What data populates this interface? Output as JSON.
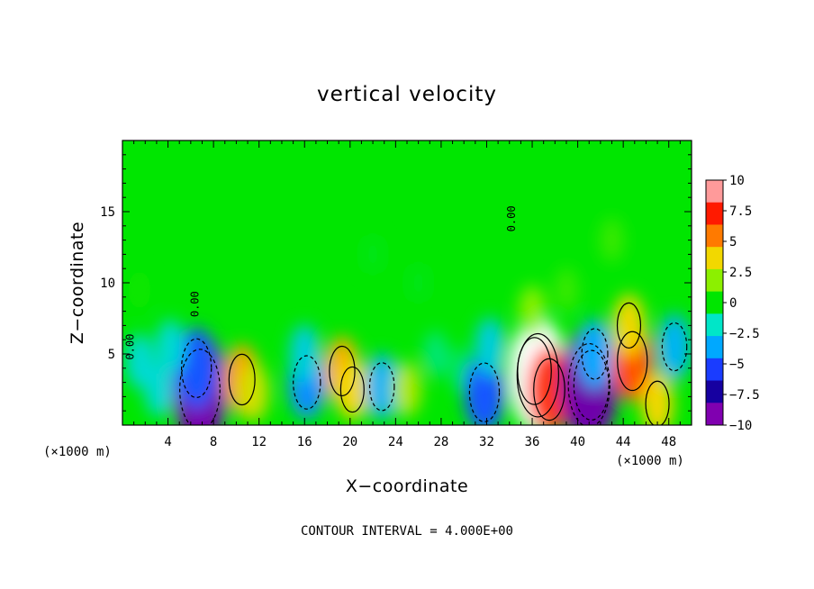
{
  "chart_data": {
    "type": "heatmap",
    "title": "vertical velocity",
    "xlabel": "X−coordinate",
    "ylabel": "Z−coordinate",
    "x_units_left": "(×1000 m)",
    "x_units_right": "(×1000 m)",
    "footer": "CONTOUR INTERVAL = 4.000E+00",
    "xlim": [
      0,
      50
    ],
    "ylim": [
      0,
      20
    ],
    "x_ticks": [
      4,
      8,
      12,
      16,
      20,
      24,
      28,
      32,
      36,
      40,
      44,
      48
    ],
    "x_tick_labels": [
      "4",
      "8",
      "12",
      "16",
      "20",
      "24",
      "28",
      "32",
      "36",
      "40",
      "44",
      "48"
    ],
    "y_ticks": [
      5,
      10,
      15
    ],
    "y_tick_labels": [
      "5",
      "10",
      "15"
    ],
    "contour_labels": [
      {
        "text": "0.00",
        "x": 34.5,
        "z": 14.5
      },
      {
        "text": "0.00",
        "x": 6.7,
        "z": 8.5
      },
      {
        "text": "0.00",
        "x": 1.0,
        "z": 5.5
      }
    ],
    "colorbar": {
      "range": [
        -10,
        10
      ],
      "tick_values": [
        10,
        7.5,
        5,
        2.5,
        0,
        -2.5,
        -5,
        -7.5,
        -10
      ],
      "tick_labels": [
        "10",
        "7.5",
        "5",
        "2.5",
        "0",
        "−2.5",
        "−5",
        "−7.5",
        "−10"
      ],
      "colors": [
        "#ff9a9a",
        "#ff1a00",
        "#ff7a00",
        "#f2d800",
        "#8cf000",
        "#00e600",
        "#00e6c8",
        "#00a8ff",
        "#1a3cff",
        "#1600a0",
        "#8000b0"
      ]
    },
    "cells": [
      {
        "x": 6.8,
        "z": 2.5,
        "w": -10.5
      },
      {
        "x": 6.5,
        "z": 4.0,
        "w": -6.5
      },
      {
        "x": 3.2,
        "z": 2.5,
        "w": -3.0
      },
      {
        "x": 4.2,
        "z": 5.5,
        "w": -3.0
      },
      {
        "x": 1.5,
        "z": 4.5,
        "w": -3.0
      },
      {
        "x": 10.5,
        "z": 3.2,
        "w": 5.0
      },
      {
        "x": 11.5,
        "z": 2.3,
        "w": 3.5
      },
      {
        "x": 16.2,
        "z": 3.0,
        "w": -5.5
      },
      {
        "x": 16.0,
        "z": 5.0,
        "w": -3.5
      },
      {
        "x": 19.3,
        "z": 3.8,
        "w": 4.8
      },
      {
        "x": 20.2,
        "z": 2.5,
        "w": 4.0
      },
      {
        "x": 22.8,
        "z": 2.7,
        "w": -4.5
      },
      {
        "x": 25.0,
        "z": 2.5,
        "w": 3.0
      },
      {
        "x": 27.5,
        "z": 5.0,
        "w": -1.8
      },
      {
        "x": 29.5,
        "z": 4.0,
        "w": -1.5
      },
      {
        "x": 31.8,
        "z": 2.3,
        "w": -6.5
      },
      {
        "x": 32.3,
        "z": 5.5,
        "w": -3.5
      },
      {
        "x": 36.2,
        "z": 3.8,
        "w": 8.0
      },
      {
        "x": 36.5,
        "z": 3.5,
        "w": 11.0
      },
      {
        "x": 37.5,
        "z": 2.5,
        "w": 7.0
      },
      {
        "x": 36.0,
        "z": 8.0,
        "w": 2.5
      },
      {
        "x": 41.2,
        "z": 2.8,
        "w": -8.5
      },
      {
        "x": 41.0,
        "z": 2.8,
        "w": -11.0
      },
      {
        "x": 41.5,
        "z": 5.0,
        "w": -5.0
      },
      {
        "x": 39.0,
        "z": 9.5,
        "w": 1.5
      },
      {
        "x": 44.8,
        "z": 4.5,
        "w": 6.5
      },
      {
        "x": 44.5,
        "z": 7.0,
        "w": 4.0
      },
      {
        "x": 47.0,
        "z": 1.5,
        "w": 4.0
      },
      {
        "x": 48.5,
        "z": 5.5,
        "w": -4.5
      },
      {
        "x": 43.0,
        "z": 13.0,
        "w": 1.5
      },
      {
        "x": 26.0,
        "z": 10.0,
        "w": -1.0
      },
      {
        "x": 22.0,
        "z": 12.0,
        "w": -1.0
      },
      {
        "x": 1.5,
        "z": 9.5,
        "w": 1.0
      }
    ]
  }
}
